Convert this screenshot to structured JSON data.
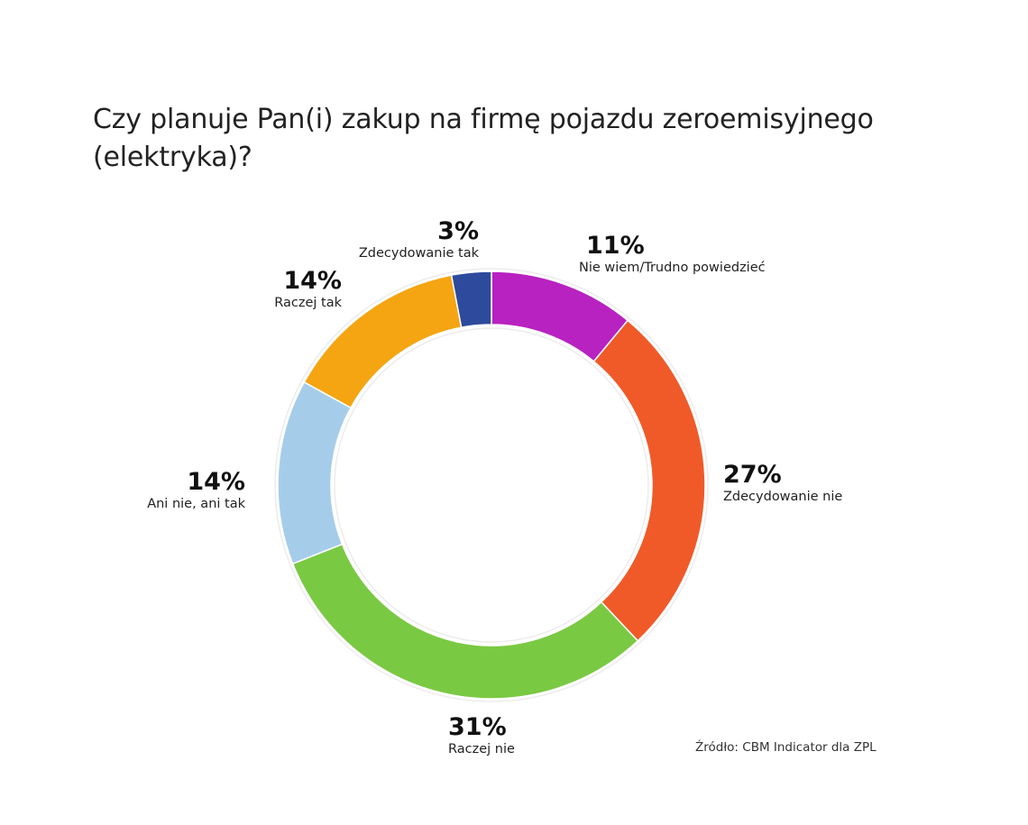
{
  "title": "Czy planuje Pan(i) zakup na firmę pojazdu zeroemisyjnego (elektryka)?",
  "source": "Źródło: CBM Indicator dla ZPL",
  "segments": [
    {
      "label": "Nie wiem/Trudno powiedzieć",
      "value": 11,
      "pct": "11%",
      "color": "#b822c0"
    },
    {
      "label": "Zdecydowanie nie",
      "value": 27,
      "pct": "27%",
      "color": "#f05a28"
    },
    {
      "label": "Raczej nie",
      "value": 31,
      "pct": "31%",
      "color": "#7ac943"
    },
    {
      "label": "Ani nie, ani tak",
      "value": 14,
      "pct": "14%",
      "color": "#a5cdea"
    },
    {
      "label": "Raczej tak",
      "value": 14,
      "pct": "14%",
      "color": "#f5a511"
    },
    {
      "label": "Zdecydowanie tak",
      "value": 3,
      "pct": "3%",
      "color": "#2e4a9c"
    }
  ],
  "chart_data": {
    "type": "pie",
    "variant": "donut",
    "title": "Czy planuje Pan(i) zakup na firmę pojazdu zeroemisyjnego (elektryka)?",
    "categories": [
      "Nie wiem/Trudno powiedzieć",
      "Zdecydowanie nie",
      "Raczej nie",
      "Ani nie, ani tak",
      "Raczej tak",
      "Zdecydowanie tak"
    ],
    "values": [
      11,
      27,
      31,
      14,
      14,
      3
    ],
    "unit": "%",
    "colors": [
      "#b822c0",
      "#f05a28",
      "#7ac943",
      "#a5cdea",
      "#f5a511",
      "#2e4a9c"
    ],
    "start_angle": "top (12 o'clock), clockwise",
    "legend": "none (direct labels)",
    "source": "Źródło: CBM Indicator dla ZPL"
  }
}
